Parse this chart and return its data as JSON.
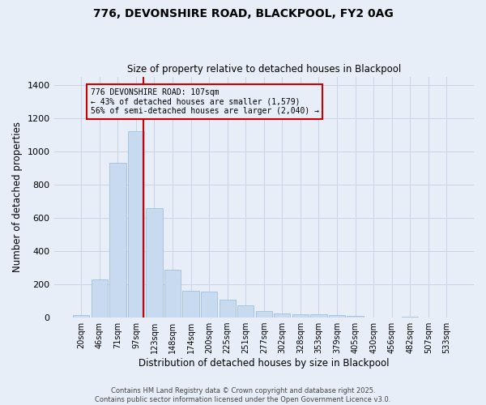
{
  "title": "776, DEVONSHIRE ROAD, BLACKPOOL, FY2 0AG",
  "subtitle": "Size of property relative to detached houses in Blackpool",
  "xlabel": "Distribution of detached houses by size in Blackpool",
  "ylabel": "Number of detached properties",
  "categories": [
    "20sqm",
    "46sqm",
    "71sqm",
    "97sqm",
    "123sqm",
    "148sqm",
    "174sqm",
    "200sqm",
    "225sqm",
    "251sqm",
    "277sqm",
    "302sqm",
    "328sqm",
    "353sqm",
    "379sqm",
    "405sqm",
    "430sqm",
    "456sqm",
    "482sqm",
    "507sqm",
    "533sqm"
  ],
  "values": [
    15,
    230,
    930,
    1120,
    660,
    290,
    160,
    155,
    110,
    75,
    40,
    25,
    20,
    20,
    15,
    8,
    0,
    0,
    5,
    0,
    0
  ],
  "bar_color": "#c8daf0",
  "bar_edge_color": "#99b8d8",
  "grid_color": "#c8d4e8",
  "background_color": "#e8eef8",
  "vline_x_index": 3.4,
  "vline_color": "#cc0000",
  "annotation_text": "776 DEVONSHIRE ROAD: 107sqm\n← 43% of detached houses are smaller (1,579)\n56% of semi-detached houses are larger (2,040) →",
  "annotation_box_color": "#cc0000",
  "ylim": [
    0,
    1450
  ],
  "yticks": [
    0,
    200,
    400,
    600,
    800,
    1000,
    1200,
    1400
  ],
  "footer_line1": "Contains HM Land Registry data © Crown copyright and database right 2025.",
  "footer_line2": "Contains public sector information licensed under the Open Government Licence v3.0."
}
